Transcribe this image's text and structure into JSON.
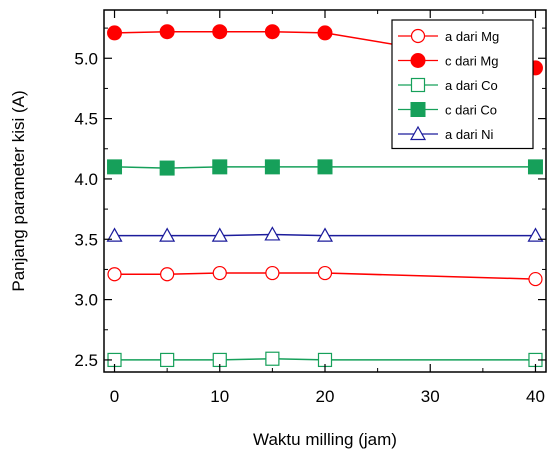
{
  "chart_data": {
    "type": "line",
    "xlabel": "Waktu milling (jam)",
    "ylabel": "Panjang parameter kisi (A)",
    "xlim": [
      -1,
      41
    ],
    "ylim": [
      2.4,
      5.4
    ],
    "x_ticks": [
      0,
      10,
      20,
      30,
      40
    ],
    "y_ticks": [
      2.5,
      3.0,
      3.5,
      4.0,
      4.5,
      5.0
    ],
    "x_tick_labels": [
      "0",
      "10",
      "20",
      "30",
      "40"
    ],
    "y_tick_labels": [
      "2.5",
      "3.0",
      "3.5",
      "4.0",
      "4.5",
      "5.0"
    ],
    "legend_position": "top-right",
    "grid": false,
    "x": [
      0,
      5,
      10,
      15,
      20,
      40
    ],
    "series": [
      {
        "name": "a  dari Mg",
        "color": "#ff0000",
        "marker": "circle-open",
        "values": [
          3.21,
          3.21,
          3.22,
          3.22,
          3.22,
          3.17
        ]
      },
      {
        "name": "c  dari Mg",
        "color": "#ff0000",
        "marker": "circle-filled",
        "values": [
          5.21,
          5.22,
          5.22,
          5.22,
          5.21,
          4.92
        ]
      },
      {
        "name": "a dari Co",
        "color": "#16a05a",
        "marker": "square-open",
        "values": [
          2.5,
          2.5,
          2.5,
          2.51,
          2.5,
          2.5
        ]
      },
      {
        "name": "c dari Co",
        "color": "#16a05a",
        "marker": "square-filled",
        "values": [
          4.1,
          4.09,
          4.1,
          4.1,
          4.1,
          4.1
        ]
      },
      {
        "name": "a dari Ni",
        "color": "#1c1c9c",
        "marker": "triangle-open",
        "values": [
          3.53,
          3.53,
          3.53,
          3.54,
          3.53,
          3.53
        ]
      }
    ]
  }
}
